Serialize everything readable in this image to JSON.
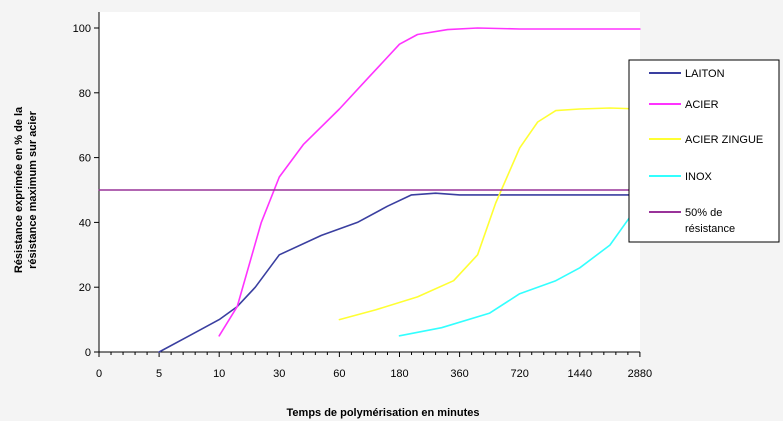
{
  "chart_data": {
    "type": "line",
    "xlabel": "Temps de polymérisation en minutes",
    "ylabel_lines": [
      "Résistance exprimée en % de la",
      "résistance maximum sur acier"
    ],
    "x_ticks": [
      "0",
      "5",
      "10",
      "30",
      "60",
      "180",
      "360",
      "720",
      "1440",
      "2880"
    ],
    "y_ticks": [
      0,
      20,
      40,
      60,
      80,
      100
    ],
    "ylim": [
      0,
      100
    ],
    "grid": false,
    "legend_position": "right",
    "series": [
      {
        "name": "LAITON",
        "color": "#3a3fa0",
        "points": [
          [
            1,
            0
          ],
          [
            1.5,
            5
          ],
          [
            2,
            10
          ],
          [
            2.3,
            14
          ],
          [
            2.6,
            20
          ],
          [
            3,
            30
          ],
          [
            3.7,
            36
          ],
          [
            4.3,
            40
          ],
          [
            4.8,
            45
          ],
          [
            5.2,
            48.5
          ],
          [
            5.6,
            49
          ],
          [
            6,
            48.5
          ],
          [
            7,
            48.5
          ],
          [
            8,
            48.5
          ],
          [
            9,
            48.5
          ]
        ]
      },
      {
        "name": "ACIER",
        "color": "#ff33ff",
        "points": [
          [
            2,
            5
          ],
          [
            2.3,
            14
          ],
          [
            2.7,
            40
          ],
          [
            3,
            54
          ],
          [
            3.4,
            64
          ],
          [
            4,
            75
          ],
          [
            4.5,
            85
          ],
          [
            5,
            95
          ],
          [
            5.3,
            98
          ],
          [
            5.8,
            99.5
          ],
          [
            6.3,
            100
          ],
          [
            7,
            99.7
          ],
          [
            8,
            99.7
          ],
          [
            9,
            99.7
          ]
        ]
      },
      {
        "name": "ACIER ZINGUE",
        "color": "#ffff33",
        "points": [
          [
            4,
            10
          ],
          [
            4.6,
            13
          ],
          [
            5.3,
            17
          ],
          [
            5.9,
            22
          ],
          [
            6.3,
            30
          ],
          [
            6.6,
            46
          ],
          [
            7,
            63
          ],
          [
            7.3,
            71
          ],
          [
            7.6,
            74.5
          ],
          [
            8,
            75
          ],
          [
            8.5,
            75.3
          ],
          [
            9,
            75
          ]
        ]
      },
      {
        "name": "INOX",
        "color": "#33ffff",
        "points": [
          [
            5,
            5
          ],
          [
            5.7,
            7.5
          ],
          [
            6.5,
            12
          ],
          [
            7,
            18
          ],
          [
            7.6,
            22
          ],
          [
            8,
            26
          ],
          [
            8.5,
            33
          ],
          [
            9,
            46
          ]
        ]
      },
      {
        "name": "50% de résistance",
        "legend_lines": [
          "50% de",
          "résistance"
        ],
        "color": "#993399",
        "points": [
          [
            0,
            50
          ],
          [
            9,
            50
          ]
        ]
      }
    ]
  }
}
